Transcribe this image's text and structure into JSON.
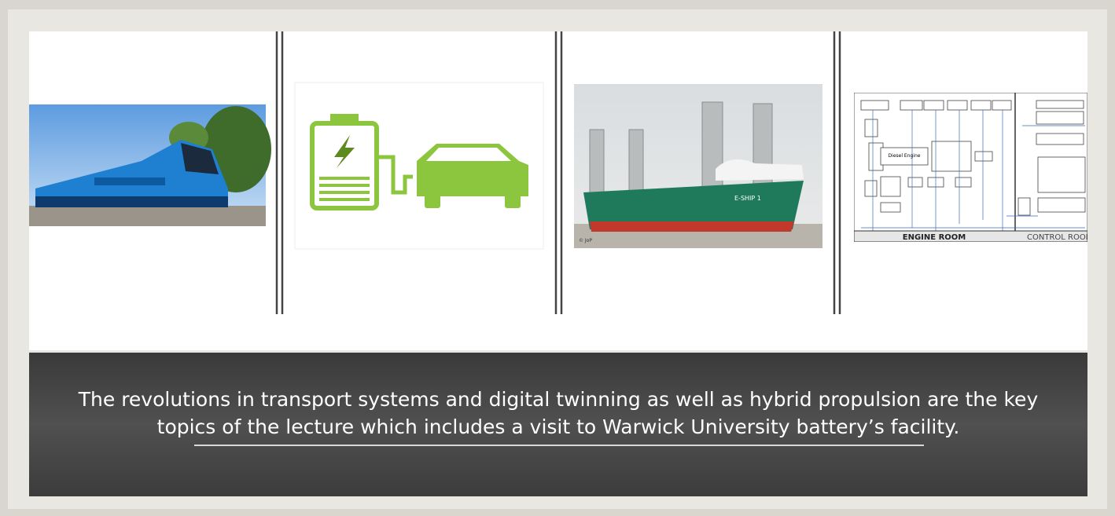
{
  "caption": {
    "lines": [
      "The revolutions in transport systems and digital twinning as well as hybrid propulsion are the key",
      "topics of the lecture which includes a visit to Warwick University battery’s facility."
    ]
  },
  "ship": {
    "name": "E-SHIP 1",
    "credit": "© JoP"
  },
  "diagram": {
    "engine": "Diesel Engine",
    "left_room": "ENGINE ROOM",
    "right_room": "CONTROL ROOM"
  }
}
